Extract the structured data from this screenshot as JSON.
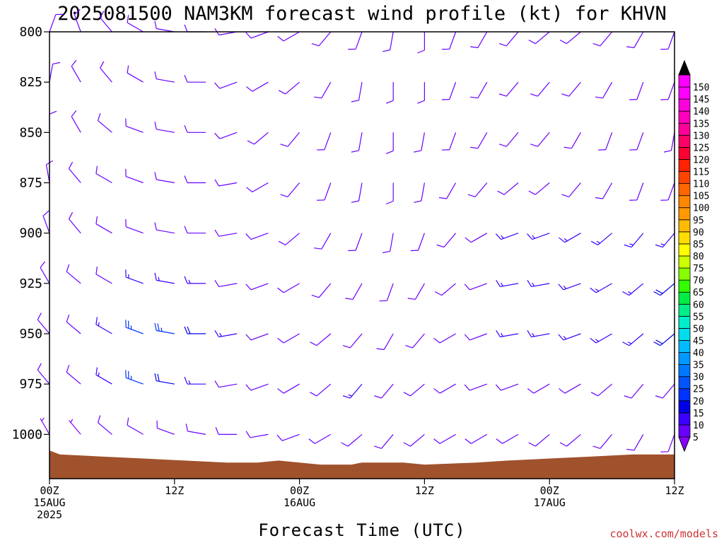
{
  "chart_data": {
    "type": "wind-barb-profile",
    "title": "2025081500 NAM3KM forecast wind profile (kt) for KHVN",
    "xlabel": "Forecast Time (UTC)",
    "credit": "coolwx.com/models",
    "y_axis": {
      "reversed": true,
      "range": [
        800,
        1022
      ],
      "ticks": [
        "800",
        "825",
        "850",
        "875",
        "900",
        "925",
        "950",
        "975",
        "1000"
      ]
    },
    "x_axis": {
      "range_hours": [
        0,
        60
      ],
      "ticks": [
        {
          "hour": 0,
          "line1": "00Z",
          "line2": "15AUG",
          "line3": "2025"
        },
        {
          "hour": 12,
          "line1": "12Z",
          "line2": "",
          "line3": ""
        },
        {
          "hour": 24,
          "line1": "00Z",
          "line2": "16AUG",
          "line3": ""
        },
        {
          "hour": 36,
          "line1": "12Z",
          "line2": "",
          "line3": ""
        },
        {
          "hour": 48,
          "line1": "00Z",
          "line2": "17AUG",
          "line3": ""
        },
        {
          "hour": 60,
          "line1": "12Z",
          "line2": "",
          "line3": ""
        }
      ]
    },
    "colorbar": {
      "units": "kt",
      "levels": [
        "5",
        "10",
        "15",
        "20",
        "25",
        "30",
        "35",
        "40",
        "45",
        "50",
        "55",
        "60",
        "65",
        "70",
        "75",
        "80",
        "85",
        "90",
        "95",
        "100",
        "105",
        "110",
        "115",
        "120",
        "125",
        "130",
        "135",
        "140",
        "145",
        "150"
      ],
      "colors": [
        "#8800ff",
        "#6a00ff",
        "#3b00ff",
        "#0000e6",
        "#0033ff",
        "#0055ff",
        "#0077ff",
        "#0099ff",
        "#00bbff",
        "#00ddee",
        "#00eecc",
        "#00ee88",
        "#00ee44",
        "#33ff00",
        "#88ff00",
        "#ccff00",
        "#ffff00",
        "#ffdd00",
        "#ffbb00",
        "#ff9900",
        "#ff8800",
        "#ff6600",
        "#ff4400",
        "#ff2200",
        "#ff0033",
        "#ff0066",
        "#ff0099",
        "#ff00bb",
        "#ff00dd",
        "#ff00ff"
      ]
    },
    "terrain_color": "#a0522d",
    "surface_pressure": [
      {
        "hour": 0,
        "p": 1008
      },
      {
        "hour": 1,
        "p": 1010
      },
      {
        "hour": 5,
        "p": 1011
      },
      {
        "hour": 9,
        "p": 1012
      },
      {
        "hour": 13,
        "p": 1013
      },
      {
        "hour": 17,
        "p": 1014
      },
      {
        "hour": 20,
        "p": 1014
      },
      {
        "hour": 22,
        "p": 1013
      },
      {
        "hour": 24,
        "p": 1014
      },
      {
        "hour": 26,
        "p": 1015
      },
      {
        "hour": 29,
        "p": 1015
      },
      {
        "hour": 30,
        "p": 1014
      },
      {
        "hour": 34,
        "p": 1014
      },
      {
        "hour": 36,
        "p": 1015
      },
      {
        "hour": 41,
        "p": 1014
      },
      {
        "hour": 44,
        "p": 1013
      },
      {
        "hour": 48,
        "p": 1012
      },
      {
        "hour": 52,
        "p": 1011
      },
      {
        "hour": 56,
        "p": 1010
      },
      {
        "hour": 60,
        "p": 1010
      }
    ],
    "wind_grid": {
      "hours": [
        0,
        3,
        6,
        9,
        12,
        15,
        18,
        21,
        24,
        27,
        30,
        33,
        36,
        39,
        42,
        45,
        48,
        51,
        54,
        57,
        60
      ],
      "levels": [
        800,
        825,
        850,
        875,
        900,
        925,
        950,
        975,
        1000
      ],
      "direction_deg": [
        [
          20,
          340,
          320,
          300,
          280,
          270,
          260,
          250,
          240,
          220,
          200,
          190,
          180,
          200,
          210,
          220,
          230,
          230,
          220,
          210,
          200
        ],
        [
          10,
          330,
          320,
          300,
          280,
          270,
          250,
          240,
          230,
          210,
          190,
          180,
          180,
          200,
          210,
          220,
          220,
          220,
          210,
          200,
          200
        ],
        [
          360,
          330,
          310,
          290,
          280,
          270,
          250,
          230,
          220,
          200,
          190,
          180,
          190,
          200,
          210,
          220,
          220,
          210,
          200,
          200,
          190
        ],
        [
          350,
          320,
          300,
          290,
          280,
          270,
          260,
          240,
          220,
          200,
          190,
          180,
          190,
          210,
          220,
          230,
          230,
          220,
          210,
          200,
          200
        ],
        [
          340,
          320,
          300,
          290,
          280,
          270,
          260,
          250,
          230,
          210,
          200,
          190,
          200,
          220,
          240,
          250,
          250,
          240,
          230,
          220,
          220
        ],
        [
          330,
          310,
          300,
          290,
          280,
          270,
          260,
          250,
          240,
          220,
          210,
          200,
          210,
          230,
          250,
          260,
          260,
          250,
          240,
          230,
          230
        ],
        [
          320,
          310,
          300,
          290,
          280,
          270,
          260,
          250,
          240,
          230,
          220,
          210,
          220,
          240,
          250,
          260,
          260,
          250,
          240,
          230,
          230
        ],
        [
          320,
          310,
          300,
          290,
          280,
          270,
          260,
          250,
          240,
          230,
          220,
          220,
          230,
          240,
          250,
          250,
          240,
          240,
          230,
          220,
          220
        ],
        [
          330,
          320,
          310,
          300,
          290,
          280,
          270,
          260,
          250,
          240,
          230,
          220,
          230,
          240,
          240,
          240,
          230,
          230,
          220,
          210,
          200
        ]
      ],
      "speed_kt": [
        [
          10,
          10,
          10,
          10,
          10,
          10,
          10,
          10,
          10,
          10,
          10,
          10,
          10,
          10,
          10,
          10,
          10,
          10,
          10,
          10,
          10
        ],
        [
          10,
          10,
          10,
          10,
          10,
          10,
          10,
          10,
          10,
          10,
          10,
          10,
          10,
          10,
          10,
          10,
          10,
          10,
          10,
          10,
          10
        ],
        [
          10,
          10,
          10,
          10,
          10,
          10,
          10,
          10,
          10,
          10,
          10,
          10,
          10,
          10,
          10,
          10,
          10,
          10,
          10,
          10,
          10
        ],
        [
          10,
          10,
          10,
          10,
          10,
          10,
          10,
          10,
          10,
          10,
          10,
          10,
          10,
          10,
          10,
          10,
          10,
          10,
          10,
          10,
          10
        ],
        [
          10,
          10,
          10,
          10,
          10,
          10,
          10,
          10,
          10,
          10,
          10,
          10,
          10,
          10,
          10,
          15,
          15,
          15,
          15,
          15,
          15
        ],
        [
          10,
          10,
          10,
          15,
          15,
          15,
          10,
          10,
          10,
          10,
          10,
          10,
          10,
          10,
          10,
          15,
          15,
          15,
          15,
          15,
          20
        ],
        [
          10,
          10,
          15,
          25,
          25,
          20,
          15,
          10,
          10,
          10,
          10,
          10,
          10,
          10,
          10,
          15,
          15,
          15,
          15,
          15,
          20
        ],
        [
          10,
          10,
          15,
          25,
          20,
          15,
          10,
          10,
          10,
          10,
          15,
          10,
          10,
          10,
          10,
          10,
          10,
          10,
          10,
          10,
          10
        ],
        [
          5,
          5,
          10,
          10,
          10,
          10,
          10,
          10,
          10,
          10,
          10,
          10,
          10,
          10,
          10,
          10,
          10,
          10,
          10,
          10,
          10
        ]
      ]
    }
  }
}
